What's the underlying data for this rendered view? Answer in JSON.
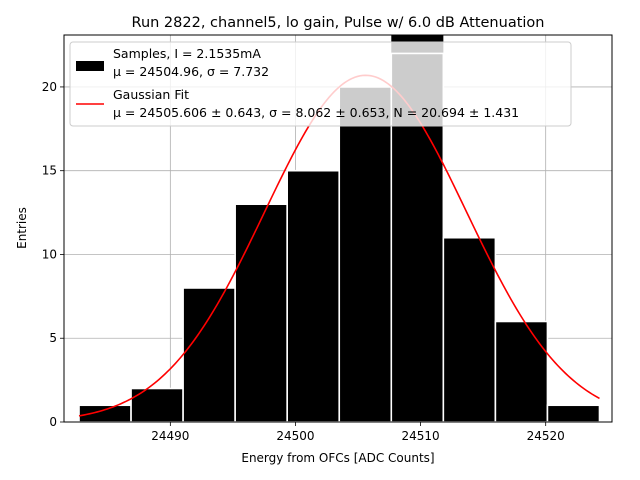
{
  "chart_data": {
    "type": "bar",
    "title": "Run 2822, channel5, lo gain, Pulse w/ 6.0 dB Attenuation",
    "xlabel": "Energy from OFCs [ADC Counts]",
    "ylabel": "Entries",
    "xlim": [
      24481.5,
      24525.3
    ],
    "ylim": [
      0,
      23.1
    ],
    "grid": true,
    "x_ticks": [
      24490,
      24500,
      24510,
      24520
    ],
    "y_ticks": [
      0,
      5,
      10,
      15,
      20
    ],
    "histogram": {
      "bin_edges": [
        24482.7,
        24486.86,
        24491.02,
        24495.18,
        24499.34,
        24503.5,
        24507.66,
        24511.82,
        24515.98,
        24520.14,
        24524.3
      ],
      "values": [
        1,
        2,
        8,
        13,
        15,
        20,
        22,
        11,
        6,
        1
      ],
      "color": "#000000",
      "edge_color": "#ffffff"
    },
    "fit": {
      "type": "gaussian",
      "mu": 24505.606,
      "sigma": 8.062,
      "N": 20.694,
      "x_range": [
        24482.7,
        24524.3
      ],
      "color": "#ff0000"
    },
    "highlight_color": "#c8c8c8",
    "legend": {
      "placement": "upper-left",
      "entries": [
        {
          "line1": "Samples, I = 2.1535mA",
          "line2": "μ = 24504.96, σ = 7.732"
        },
        {
          "line1": "Gaussian Fit",
          "line2": "μ = 24505.606 ± 0.643, σ = 8.062 ± 0.653, N = 20.694 ± 1.431"
        }
      ]
    }
  }
}
